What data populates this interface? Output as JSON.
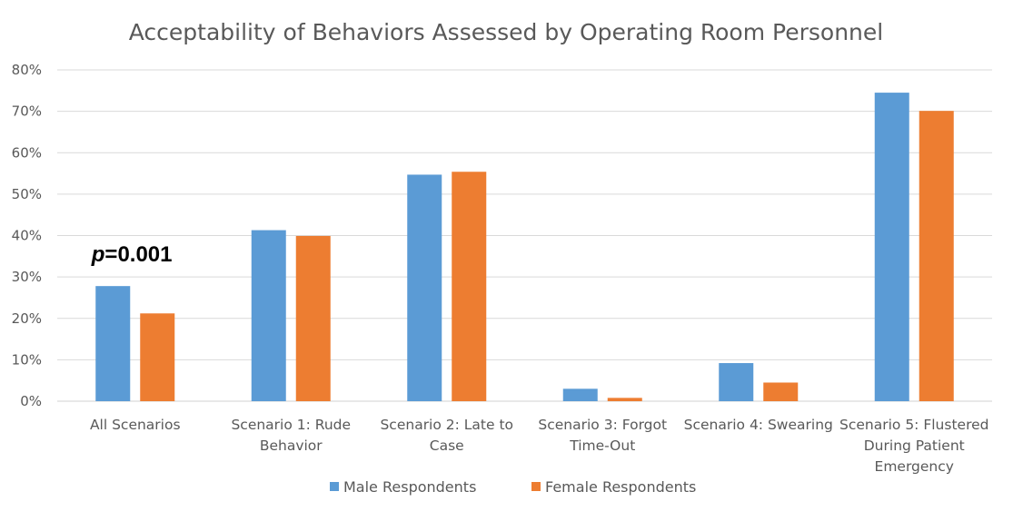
{
  "chart_data": {
    "type": "bar",
    "title": "Acceptability of Behaviors Assessed by Operating Room Personnel",
    "xlabel": "",
    "ylabel": "",
    "ylim": [
      0,
      0.8
    ],
    "yticks": [
      {
        "value": 0,
        "label": "0%"
      },
      {
        "value": 0.1,
        "label": "10%"
      },
      {
        "value": 0.2,
        "label": "20%"
      },
      {
        "value": 0.3,
        "label": "30%"
      },
      {
        "value": 0.4,
        "label": "40%"
      },
      {
        "value": 0.5,
        "label": "50%"
      },
      {
        "value": 0.6,
        "label": "60%"
      },
      {
        "value": 0.7,
        "label": "70%"
      },
      {
        "value": 0.8,
        "label": "80%"
      }
    ],
    "categories": [
      [
        "All Scenarios"
      ],
      [
        "Scenario 1: Rude",
        "Behavior"
      ],
      [
        "Scenario 2: Late to",
        "Case"
      ],
      [
        "Scenario 3: Forgot",
        "Time-Out"
      ],
      [
        "Scenario 4: Swearing"
      ],
      [
        "Scenario 5: Flustered",
        "During Patient",
        "Emergency"
      ]
    ],
    "series": [
      {
        "name": "Male Respondents",
        "color": "#5b9bd5",
        "values": [
          0.278,
          0.413,
          0.547,
          0.03,
          0.092,
          0.745
        ]
      },
      {
        "name": "Female Respondents",
        "color": "#ed7d31",
        "values": [
          0.212,
          0.399,
          0.554,
          0.008,
          0.045,
          0.701
        ]
      }
    ],
    "grid": true,
    "legend": "bottom",
    "annotation": {
      "italic_part": "p",
      "rest": "=0.001",
      "category_index": 0
    }
  }
}
